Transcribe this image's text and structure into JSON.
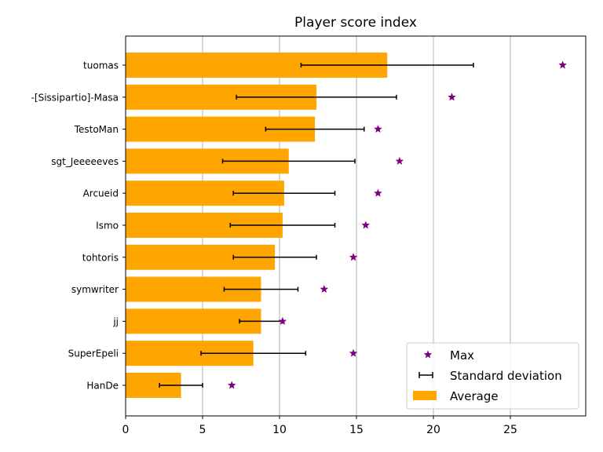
{
  "chart_data": {
    "type": "bar",
    "orientation": "horizontal",
    "title": "Player score index",
    "xlabel": "",
    "ylabel": "",
    "xlim": [
      0,
      30
    ],
    "xticks": [
      0,
      5,
      10,
      15,
      20,
      25
    ],
    "x_grid": true,
    "legend_position": "lower-right",
    "categories": [
      "tuomas",
      "-[Sissipartio]-Masa",
      "TestoMan",
      "sgt_Jeeeeeves",
      "Arcueid",
      "Ismo",
      "tohtoris",
      "symwriter",
      "jj",
      "SuperEpeli",
      "HanDe"
    ],
    "series": [
      {
        "name": "Average",
        "kind": "bar",
        "color": "#ffa500",
        "values": [
          17.0,
          12.4,
          12.3,
          10.6,
          10.3,
          10.2,
          9.7,
          8.8,
          8.8,
          8.3,
          3.6
        ]
      },
      {
        "name": "Standard deviation",
        "kind": "errorbar",
        "color": "#000000",
        "values": [
          5.6,
          5.2,
          3.2,
          4.3,
          3.3,
          3.4,
          2.7,
          2.4,
          1.4,
          3.4,
          1.4
        ]
      },
      {
        "name": "Max",
        "kind": "marker",
        "marker": "star",
        "color": "#800080",
        "values": [
          28.4,
          21.2,
          16.4,
          17.8,
          16.4,
          15.6,
          14.8,
          12.9,
          10.2,
          14.8,
          6.9
        ]
      }
    ]
  }
}
